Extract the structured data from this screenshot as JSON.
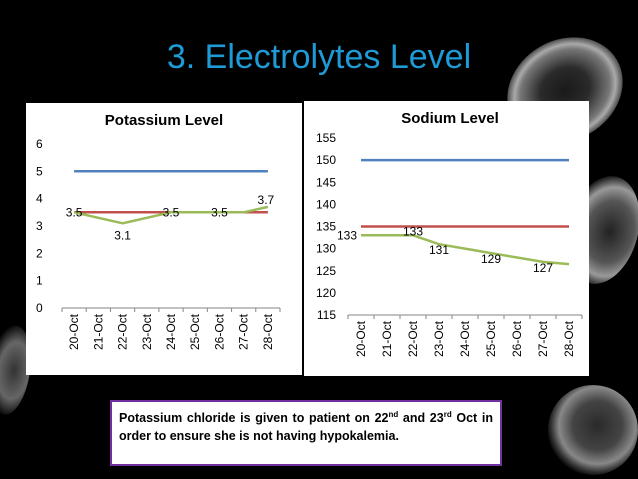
{
  "slide": {
    "title": "3. Electrolytes Level",
    "background": "#000000",
    "title_color": "#1e9bd7"
  },
  "note": {
    "part1": "Potassium chloride is given to patient on 22",
    "sup1": "nd",
    "part2": " and 23",
    "sup2": "rd",
    "part3": " Oct in order to ensure she is not having hypokalemia.",
    "border_color": "#7030a0"
  },
  "colors": {
    "blue": "#4f81bd",
    "red": "#c0504d",
    "green": "#9bbb59"
  },
  "decorations": [
    "red-blood-cell-image"
  ],
  "chart_data": [
    {
      "type": "line",
      "title": "Potassium Level",
      "categories": [
        "20-Oct",
        "21-Oct",
        "22-Oct",
        "23-Oct",
        "24-Oct",
        "25-Oct",
        "26-Oct",
        "27-Oct",
        "28-Oct"
      ],
      "ylim": [
        0,
        6
      ],
      "yticks": [
        0,
        1,
        2,
        3,
        4,
        5,
        6
      ],
      "grid": false,
      "legend": "none",
      "series": [
        {
          "values": [
            5,
            5,
            5,
            5,
            5,
            5,
            5,
            5,
            5
          ],
          "color": "#4f81bd"
        },
        {
          "values": [
            3.5,
            3.5,
            3.5,
            3.5,
            3.5,
            3.5,
            3.5,
            3.5,
            3.5
          ],
          "color": "#c0504d"
        },
        {
          "values": [
            3.5,
            3.3,
            3.1,
            3.3,
            3.5,
            3.5,
            3.5,
            3.5,
            3.7
          ],
          "color": "#9bbb59",
          "data_labels": [
            {
              "index": 0,
              "text": "3.5"
            },
            {
              "index": 2,
              "text": "3.1"
            },
            {
              "index": 4,
              "text": "3.5"
            },
            {
              "index": 6,
              "text": "3.5"
            },
            {
              "index": 8,
              "text": "3.7"
            }
          ]
        }
      ]
    },
    {
      "type": "line",
      "title": "Sodium Level",
      "categories": [
        "20-Oct",
        "21-Oct",
        "22-Oct",
        "23-Oct",
        "24-Oct",
        "25-Oct",
        "26-Oct",
        "27-Oct",
        "28-Oct"
      ],
      "ylim": [
        115,
        155
      ],
      "yticks": [
        115,
        120,
        125,
        130,
        135,
        140,
        145,
        150,
        155
      ],
      "grid": false,
      "legend": "none",
      "series": [
        {
          "values": [
            150,
            150,
            150,
            150,
            150,
            150,
            150,
            150,
            150
          ],
          "color": "#4f81bd"
        },
        {
          "values": [
            135,
            135,
            135,
            135,
            135,
            135,
            135,
            135,
            135
          ],
          "color": "#c0504d"
        },
        {
          "values": [
            133,
            133,
            133,
            131,
            130,
            129,
            128,
            127,
            126.5
          ],
          "color": "#9bbb59",
          "data_labels": [
            {
              "index": 0,
              "text": "133"
            },
            {
              "index": 2,
              "text": "133"
            },
            {
              "index": 3,
              "text": "131"
            },
            {
              "index": 5,
              "text": "129"
            },
            {
              "index": 7,
              "text": "127"
            }
          ]
        }
      ]
    }
  ]
}
